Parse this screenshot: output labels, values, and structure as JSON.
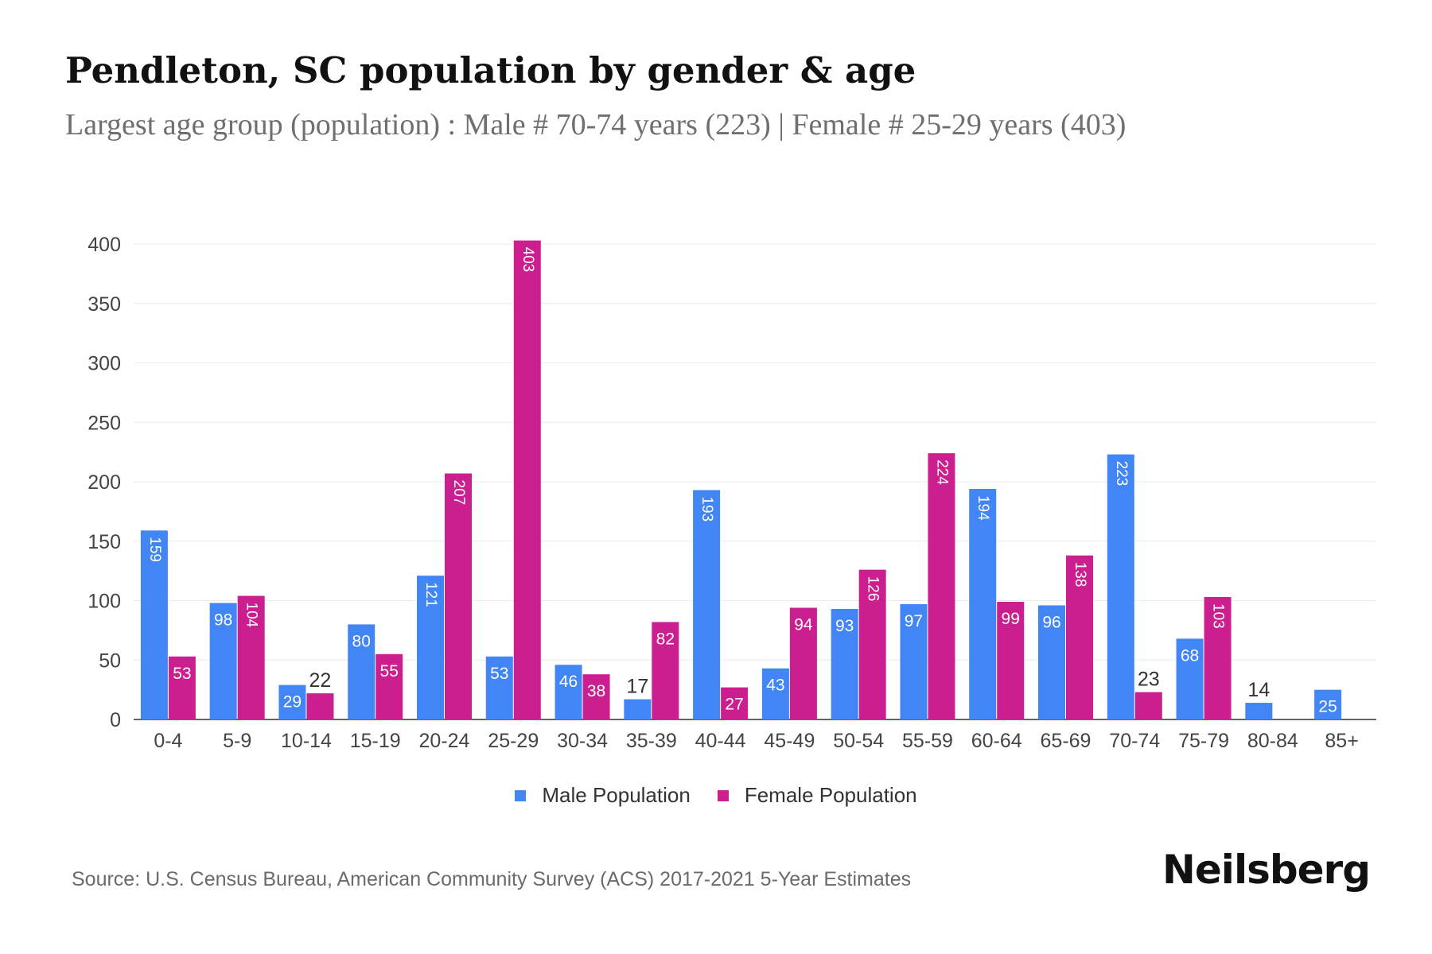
{
  "header": {
    "title": "Pendleton, SC population by gender & age",
    "subtitle": "Largest age group (population) : Male # 70-74 years (223) | Female # 25-29 years (403)"
  },
  "chart_data": {
    "type": "bar",
    "categories": [
      "0-4",
      "5-9",
      "10-14",
      "15-19",
      "20-24",
      "25-29",
      "30-34",
      "35-39",
      "40-44",
      "45-49",
      "50-54",
      "55-59",
      "60-64",
      "65-69",
      "70-74",
      "75-79",
      "80-84",
      "85+"
    ],
    "series": [
      {
        "name": "Male Population",
        "color": "#4285f4",
        "values": [
          159,
          98,
          29,
          80,
          121,
          53,
          46,
          17,
          193,
          43,
          93,
          97,
          194,
          96,
          223,
          68,
          14,
          25
        ]
      },
      {
        "name": "Female Population",
        "color": "#cc1f8f",
        "values": [
          53,
          104,
          22,
          55,
          207,
          403,
          38,
          82,
          27,
          94,
          126,
          224,
          99,
          138,
          23,
          103,
          null,
          null
        ]
      }
    ],
    "y_ticks": [
      0,
      50,
      100,
      150,
      200,
      250,
      300,
      350,
      400
    ],
    "ylim": [
      0,
      400
    ],
    "grid": true,
    "legend_position": "bottom"
  },
  "legend": {
    "male_label": "Male Population",
    "female_label": "Female Population"
  },
  "footer": {
    "source": "Source: U.S. Census Bureau, American Community Survey (ACS) 2017-2021 5-Year Estimates",
    "brand": "Neilsberg"
  }
}
